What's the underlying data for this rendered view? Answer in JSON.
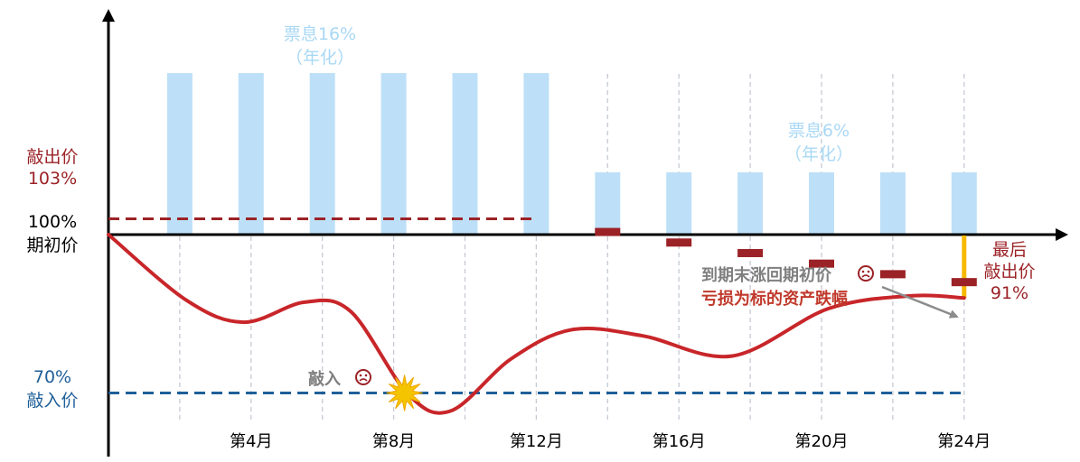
{
  "chart_data": {
    "type": "bar",
    "months": [
      1,
      2,
      3,
      4,
      5,
      6,
      7,
      8,
      9,
      10,
      11,
      12,
      13,
      14,
      15,
      16,
      17,
      18,
      19,
      20,
      21,
      22,
      23,
      24
    ],
    "x_ticks": [
      {
        "month": 4,
        "label": "第4月"
      },
      {
        "month": 8,
        "label": "第8月"
      },
      {
        "month": 12,
        "label": "第12月"
      },
      {
        "month": 16,
        "label": "第16月"
      },
      {
        "month": 20,
        "label": "第20月"
      },
      {
        "month": 24,
        "label": "第24月"
      }
    ],
    "observation_months": [
      2,
      4,
      6,
      8,
      10,
      12,
      14,
      16,
      18,
      20,
      22,
      24
    ],
    "coupon_bars": {
      "high": {
        "months": [
          2,
          4,
          6,
          8,
          10,
          12
        ],
        "value": 16,
        "label_line1": "票息16%",
        "label_line2": "（年化）"
      },
      "low": {
        "months": [
          14,
          16,
          18,
          20,
          22,
          24
        ],
        "value": 6,
        "label_line1": "票息6%",
        "label_line2": "（年化）"
      }
    },
    "knock_out_levels": [
      {
        "month": 14,
        "value": 100.5
      },
      {
        "month": 16,
        "value": 98.5
      },
      {
        "month": 18,
        "value": 96.5
      },
      {
        "month": 20,
        "value": 94.5
      },
      {
        "month": 22,
        "value": 92.5
      },
      {
        "month": 24,
        "value": 91
      }
    ],
    "initial_knock_out": {
      "value": 103,
      "line1": "敲出价",
      "line2": "103%"
    },
    "initial_price": {
      "value": 100,
      "line1": "100%",
      "line2": "期初价"
    },
    "knock_in": {
      "value": 70,
      "line1": "70%",
      "line2": "敲入价",
      "event_label": "敲入",
      "event_icon": "sad-face-icon",
      "event_month": 8
    },
    "final_knock_out_label": {
      "line1": "最后",
      "line2": "敲出价",
      "line3": "91%"
    },
    "annotation": {
      "line1": "到期末涨回期初价",
      "line2": "亏损为标的资产跌幅",
      "icon": "sad-face-icon"
    },
    "underlying_path": [
      {
        "month": 0,
        "value": 100
      },
      {
        "month": 2.2,
        "value": 87.5
      },
      {
        "month": 3.8,
        "value": 83.4
      },
      {
        "month": 5.5,
        "value": 87.2
      },
      {
        "month": 6.8,
        "value": 85.4
      },
      {
        "month": 8.4,
        "value": 69.8
      },
      {
        "month": 9.6,
        "value": 66.6
      },
      {
        "month": 11.3,
        "value": 76.5
      },
      {
        "month": 13.0,
        "value": 82.0
      },
      {
        "month": 15.0,
        "value": 80.8
      },
      {
        "month": 17.5,
        "value": 77.0
      },
      {
        "month": 20.2,
        "value": 86.0
      },
      {
        "month": 22.5,
        "value": 88.4
      },
      {
        "month": 24,
        "value": 88.0
      }
    ],
    "colors": {
      "coupon_bar": "#bde0f8",
      "coupon_text": "#a9d8f5",
      "knock_out": "#9b2226",
      "knock_in": "#1f5f99",
      "path": "#c8262a",
      "final_drop": "#f6b800",
      "axis": "#000000",
      "grid": "#c5cad3",
      "arrow": "#8c8c8c",
      "star": "#f5c400"
    },
    "grid": true
  }
}
